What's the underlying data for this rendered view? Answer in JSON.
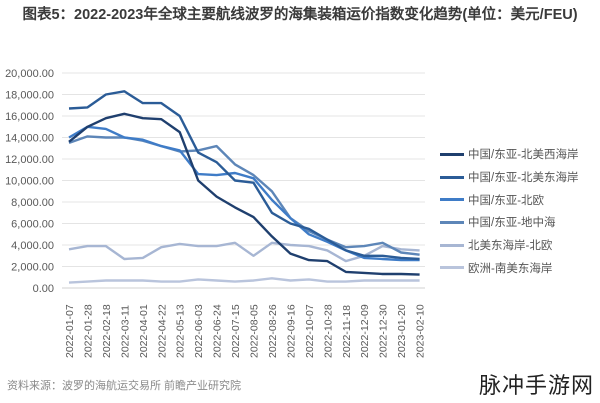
{
  "title": "图表5：2022-2023年全球主要航线波罗的海集装箱运价指数变化趋势(单位：美元/FEU)",
  "source": "资料来源：波罗的海航运交易所 前瞻产业研究院",
  "watermark": "脉冲手游网",
  "chart_data": {
    "type": "line",
    "title": "图表5：2022-2023年全球主要航线波罗的海集装箱运价指数变化趋势(单位：美元/FEU)",
    "xlabel": "",
    "ylabel": "美元/FEU",
    "ylim": [
      0,
      20000
    ],
    "yticks": [
      "0.00",
      "2,000.00",
      "4,000.00",
      "6,000.00",
      "8,000.00",
      "10,000.00",
      "12,000.00",
      "14,000.00",
      "16,000.00",
      "18,000.00",
      "20,000.00"
    ],
    "grid": true,
    "legend_position": "right",
    "categories": [
      "2022-01-07",
      "2022-01-28",
      "2022-02-18",
      "2022-03-11",
      "2022-04-01",
      "2022-04-22",
      "2022-05-13",
      "2022-06-03",
      "2022-06-24",
      "2022-07-15",
      "2022-08-05",
      "2022-08-26",
      "2022-09-16",
      "2022-10-07",
      "2022-10-28",
      "2022-11-18",
      "2022-12-09",
      "2022-12-30",
      "2023-01-20",
      "2023-02-10"
    ],
    "series": [
      {
        "name": "中国/东亚-北美西海岸",
        "color": "#1f3f6e",
        "values": [
          13600,
          15000,
          15800,
          16200,
          15800,
          15700,
          14500,
          10000,
          8500,
          7500,
          6600,
          4800,
          3200,
          2600,
          2500,
          1500,
          1400,
          1300,
          1300,
          1250
        ]
      },
      {
        "name": "中国/东亚-北美东海岸",
        "color": "#2b5c97",
        "values": [
          16700,
          16800,
          18000,
          18300,
          17200,
          17200,
          16000,
          12600,
          11700,
          10000,
          9800,
          7000,
          6000,
          5500,
          4500,
          3500,
          3000,
          3000,
          2800,
          2700
        ]
      },
      {
        "name": "中国/东亚-北欧",
        "color": "#3f7cc7",
        "values": [
          14000,
          15000,
          14800,
          14000,
          13800,
          13200,
          12800,
          10600,
          10500,
          10700,
          10200,
          8200,
          6500,
          5000,
          4300,
          3500,
          2800,
          2700,
          2600,
          2600
        ]
      },
      {
        "name": "中国/东亚-地中海",
        "color": "#5d86b8",
        "values": [
          13500,
          14100,
          14000,
          14000,
          13700,
          13200,
          12700,
          12800,
          13200,
          11500,
          10500,
          9000,
          6500,
          5300,
          4500,
          3800,
          3900,
          4200,
          3300,
          3100
        ]
      },
      {
        "name": "北美东海岸-北欧",
        "color": "#a7b6d3",
        "values": [
          3600,
          3900,
          3900,
          2700,
          2800,
          3800,
          4100,
          3900,
          3900,
          4200,
          3000,
          4200,
          4000,
          3900,
          3500,
          2500,
          3000,
          3900,
          3600,
          3500
        ]
      },
      {
        "name": "欧洲-南美东海岸",
        "color": "#b9c4dc",
        "values": [
          500,
          600,
          700,
          700,
          700,
          600,
          600,
          800,
          700,
          600,
          700,
          900,
          700,
          800,
          600,
          600,
          700,
          700,
          700,
          700
        ]
      }
    ]
  }
}
